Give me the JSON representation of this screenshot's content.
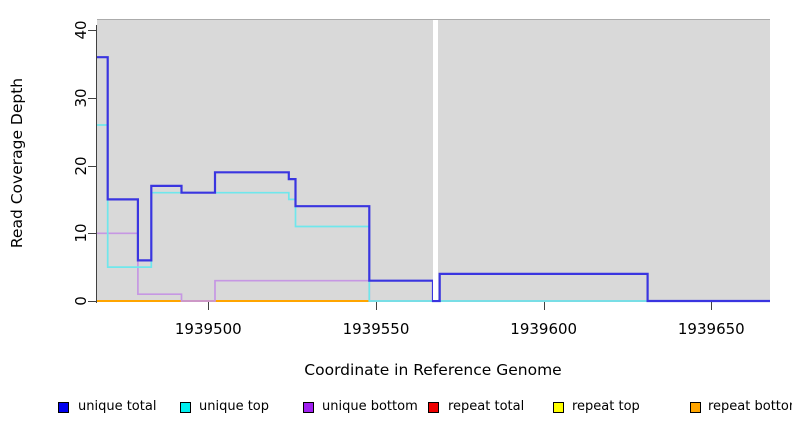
{
  "chart_data": {
    "type": "line",
    "subtype": "step",
    "xlabel": "Coordinate in Reference Genome",
    "ylabel": "Read Coverage Depth",
    "plot_bg": "#d9d9d9",
    "x_range": [
      1939466.8,
      1939667.5
    ],
    "y_range_visible": [
      0,
      41.5
    ],
    "x_ticks": [
      1939500,
      1939550,
      1939600,
      1939650
    ],
    "y_ticks": [
      0,
      10,
      20,
      30,
      40
    ],
    "grid": false,
    "legend_position": "bottom",
    "masked_region": {
      "from": 1939567.1,
      "to": 1939568.6,
      "color": "#ffffff"
    },
    "zero_line_right_segment": {
      "from": 1939548,
      "to": 1939667.5,
      "value": 0,
      "color": "#82ca82"
    },
    "series": [
      {
        "name": "unique total",
        "swatch": "#0000ee",
        "line_color": "#3a35e0",
        "line_width": 2.2,
        "points": [
          [
            1939466.8,
            36
          ],
          [
            1939470,
            15
          ],
          [
            1939479,
            6
          ],
          [
            1939483,
            17
          ],
          [
            1939492,
            16
          ],
          [
            1939502,
            19
          ],
          [
            1939524,
            18
          ],
          [
            1939526,
            14
          ],
          [
            1939548,
            3
          ],
          [
            1939567,
            0
          ],
          [
            1939569,
            4
          ],
          [
            1939631,
            0
          ]
        ]
      },
      {
        "name": "unique top",
        "swatch": "#00eeee",
        "line_color": "#6fe7ec",
        "line_width": 1.7,
        "points": [
          [
            1939466.8,
            26
          ],
          [
            1939470,
            5
          ],
          [
            1939483,
            16
          ],
          [
            1939524,
            15
          ],
          [
            1939526,
            11
          ],
          [
            1939548,
            0
          ]
        ]
      },
      {
        "name": "unique bottom",
        "swatch": "#a020f0",
        "line_color": "#c697e3",
        "line_width": 1.7,
        "points": [
          [
            1939466.8,
            10
          ],
          [
            1939479,
            1
          ],
          [
            1939492,
            0
          ],
          [
            1939502,
            3
          ],
          [
            1939548,
            0
          ]
        ]
      },
      {
        "name": "repeat total",
        "swatch": "#ee0000",
        "line_color": "#ee0000",
        "line_width": 1.5,
        "points": [
          [
            1939466.8,
            0
          ]
        ]
      },
      {
        "name": "repeat top",
        "swatch": "#ffff00",
        "line_color": "#ffff00",
        "line_width": 1.5,
        "points": [
          [
            1939466.8,
            0
          ]
        ]
      },
      {
        "name": "repeat bottom",
        "swatch": "#ffa500",
        "line_color": "#ffa500",
        "line_width": 2,
        "points": [
          [
            1939466.8,
            0
          ]
        ]
      }
    ],
    "legend": [
      {
        "label": "unique total",
        "color": "#0000ee"
      },
      {
        "label": "unique top",
        "color": "#00eeee"
      },
      {
        "label": "unique bottom",
        "color": "#a020f0"
      },
      {
        "label": "repeat total",
        "color": "#ee0000"
      },
      {
        "label": "repeat top",
        "color": "#ffff00"
      },
      {
        "label": "repeat bottom",
        "color": "#ffa500"
      }
    ]
  }
}
